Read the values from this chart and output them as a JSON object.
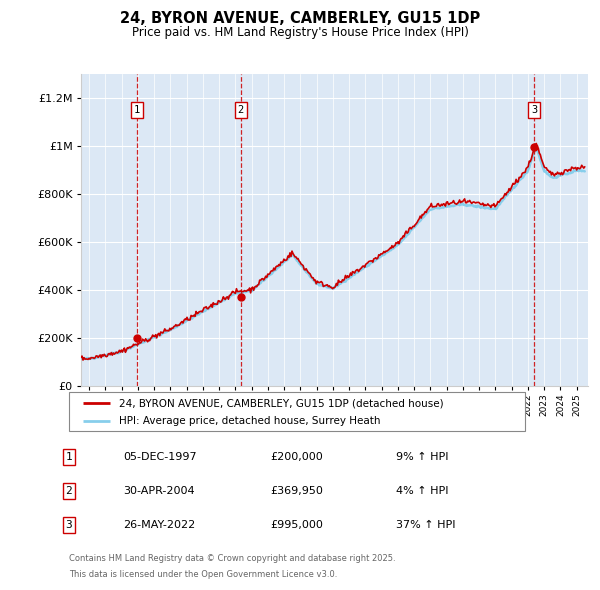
{
  "title": "24, BYRON AVENUE, CAMBERLEY, GU15 1DP",
  "subtitle": "Price paid vs. HM Land Registry's House Price Index (HPI)",
  "legend_line1": "24, BYRON AVENUE, CAMBERLEY, GU15 1DP (detached house)",
  "legend_line2": "HPI: Average price, detached house, Surrey Heath",
  "footer1": "Contains HM Land Registry data © Crown copyright and database right 2025.",
  "footer2": "This data is licensed under the Open Government Licence v3.0.",
  "transactions": [
    {
      "label": "1",
      "date": "05-DEC-1997",
      "price": "£200,000",
      "hpi": "9% ↑ HPI",
      "year": 1997.92,
      "price_val": 200000
    },
    {
      "label": "2",
      "date": "30-APR-2004",
      "price": "£369,950",
      "hpi": "4% ↑ HPI",
      "year": 2004.33,
      "price_val": 369950
    },
    {
      "label": "3",
      "date": "26-MAY-2022",
      "price": "£995,000",
      "hpi": "37% ↑ HPI",
      "year": 2022.4,
      "price_val": 995000
    }
  ],
  "hpi_color": "#87CEEB",
  "price_color": "#CC0000",
  "dashed_color": "#CC0000",
  "background_color": "#DCE8F5",
  "plot_bg": "#FFFFFF",
  "ylim": [
    0,
    1300000
  ],
  "xlim_start": 1994.5,
  "xlim_end": 2025.7,
  "yticks": [
    0,
    200000,
    400000,
    600000,
    800000,
    1000000,
    1200000
  ],
  "ytick_labels": [
    "£0",
    "£200K",
    "£400K",
    "£600K",
    "£800K",
    "£1M",
    "£1.2M"
  ]
}
